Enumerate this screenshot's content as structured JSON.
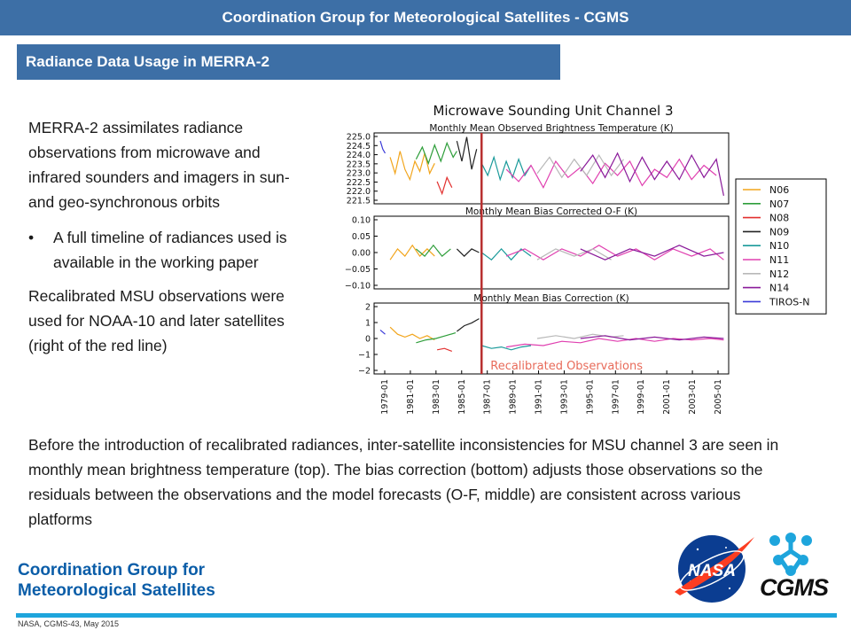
{
  "header": {
    "title": "Coordination Group for Meteorological Satellites - CGMS"
  },
  "section": {
    "title": "Radiance Data Usage in MERRA-2"
  },
  "left": {
    "para1": "MERRA-2 assimilates radiance observations from microwave and infrared sounders and imagers in sun- and geo-synchronous orbits",
    "bullet": "A full timeline of radiances used is available in the working paper",
    "bullet_symbol": "•",
    "para2": "Recalibrated MSU observations were used for NOAA-10 and later satellites (right of the red line)"
  },
  "bottom": {
    "text": "Before the introduction of recalibrated radiances, inter-satellite inconsistencies for MSU channel 3 are seen in monthly mean brightness temperature (top).  The bias correction (bottom) adjusts those observations so the residuals between the observations and the model forecasts (O-F, middle) are consistent across various platforms"
  },
  "footer": {
    "org_line1": "Coordination Group for",
    "org_line2": "Meteorological Satellites",
    "meta": "NASA, CGMS-43,  May 2015",
    "nasa_logo_text": "NASA",
    "cgms_logo_text": "CGMS",
    "accent": "#1ea5dc"
  },
  "chart_data": {
    "type": "line",
    "title": "Microwave Sounding Unit Channel 3",
    "annotation": "Recalibrated Observations",
    "x_ticks": [
      "1979-01",
      "1981-01",
      "1983-01",
      "1985-01",
      "1987-01",
      "1989-01",
      "1991-01",
      "1993-01",
      "1995-01",
      "1997-01",
      "1999-01",
      "2001-01",
      "2003-01",
      "2005-01"
    ],
    "xlim": [
      1978.3,
      2007.0
    ],
    "red_line_x": 1987.0,
    "legend": [
      {
        "name": "N06",
        "color": "#f2a51c"
      },
      {
        "name": "N07",
        "color": "#2e9e3a"
      },
      {
        "name": "N08",
        "color": "#e2302f"
      },
      {
        "name": "N09",
        "color": "#222222"
      },
      {
        "name": "N10",
        "color": "#1a9a9a"
      },
      {
        "name": "N11",
        "color": "#e040b0"
      },
      {
        "name": "N12",
        "color": "#b8b8b8"
      },
      {
        "name": "N14",
        "color": "#8a1a9a"
      },
      {
        "name": "TIROS-N",
        "color": "#3a3ad8"
      }
    ],
    "panels": [
      {
        "title": "Monthly Mean Observed Brightness Temperature (K)",
        "ylim": [
          221.5,
          225.0
        ],
        "yticks": [
          "225.0",
          "224.5",
          "224.0",
          "223.5",
          "223.0",
          "222.5",
          "222.0",
          "221.5"
        ],
        "series": [
          {
            "name": "TIROS-N",
            "x": [
              1978.8,
              1979.0,
              1979.2
            ],
            "y": [
              224.6,
              224.2,
              224.0
            ]
          },
          {
            "name": "N06",
            "x": [
              1979.6,
              1980.0,
              1980.4,
              1980.8,
              1981.2,
              1981.6,
              1982.0,
              1982.4,
              1982.8,
              1983.2
            ],
            "y": [
              223.8,
              223.0,
              224.1,
              223.2,
              222.7,
              223.6,
              223.1,
              224.0,
              223.0,
              223.5
            ]
          },
          {
            "name": "N07",
            "x": [
              1981.7,
              1982.2,
              1982.7,
              1983.2,
              1983.7,
              1984.2,
              1984.7,
              1985.0
            ],
            "y": [
              223.7,
              224.3,
              223.5,
              224.4,
              223.6,
              224.5,
              223.8,
              224.1
            ]
          },
          {
            "name": "N08",
            "x": [
              1983.4,
              1983.8,
              1984.2,
              1984.6
            ],
            "y": [
              222.6,
              222.0,
              222.8,
              222.3
            ]
          },
          {
            "name": "N09",
            "x": [
              1985.0,
              1985.4,
              1985.8,
              1986.2,
              1986.6
            ],
            "y": [
              224.6,
              223.6,
              224.8,
              223.2,
              224.2
            ]
          },
          {
            "name": "N10",
            "x": [
              1987.0,
              1987.5,
              1988.0,
              1988.5,
              1989.0,
              1989.5,
              1990.0,
              1990.5,
              1991.0
            ],
            "y": [
              223.5,
              222.9,
              223.8,
              222.7,
              223.6,
              222.8,
              223.7,
              222.9,
              223.4
            ]
          },
          {
            "name": "N11",
            "x": [
              1989.0,
              1990.0,
              1991.0,
              1992.0,
              1993.0,
              1994.0,
              1995.0,
              1996.0,
              1997.0,
              1998.0,
              1999.0,
              2000.0,
              2001.0,
              2002.0,
              2003.0,
              2004.0,
              2005.0,
              2006.0
            ],
            "y": [
              223.2,
              222.6,
              223.4,
              222.3,
              223.6,
              222.8,
              223.3,
              222.5,
              223.5,
              222.9,
              223.6,
              222.4,
              223.2,
              222.8,
              223.7,
              222.7,
              223.4,
              222.9
            ]
          },
          {
            "name": "N12",
            "x": [
              1991.5,
              1992.5,
              1993.5,
              1994.5,
              1995.5,
              1996.5,
              1997.5,
              1998.5
            ],
            "y": [
              223.0,
              223.8,
              222.8,
              223.7,
              222.9,
              223.9,
              222.9,
              223.7
            ]
          },
          {
            "name": "N14",
            "x": [
              1995.0,
              1996.0,
              1997.0,
              1998.0,
              1999.0,
              2000.0,
              2001.0,
              2002.0,
              2003.0,
              2004.0,
              2005.0,
              2006.0,
              2006.6
            ],
            "y": [
              223.1,
              223.9,
              222.8,
              224.0,
              222.6,
              223.8,
              222.7,
              223.6,
              222.7,
              223.9,
              222.8,
              223.7,
              221.9
            ]
          }
        ]
      },
      {
        "title": "Monthly Mean Bias Corrected O-F (K)",
        "ylim": [
          -0.1,
          0.1
        ],
        "yticks": [
          "0.10",
          "0.05",
          "0.00",
          "−0.05",
          "−0.10"
        ],
        "series": [
          {
            "name": "N06",
            "x": [
              1979.6,
              1980.2,
              1980.8,
              1981.4,
              1982.0,
              1982.6,
              1983.2
            ],
            "y": [
              -0.02,
              0.01,
              -0.01,
              0.02,
              -0.01,
              0.01,
              -0.01
            ]
          },
          {
            "name": "N07",
            "x": [
              1981.7,
              1982.4,
              1983.1,
              1983.8,
              1984.5
            ],
            "y": [
              0.01,
              -0.01,
              0.02,
              -0.01,
              0.01
            ]
          },
          {
            "name": "N09",
            "x": [
              1985.0,
              1985.6,
              1986.2,
              1986.8
            ],
            "y": [
              0.01,
              -0.01,
              0.01,
              0.0
            ]
          },
          {
            "name": "N10",
            "x": [
              1987.0,
              1987.8,
              1988.6,
              1989.4,
              1990.2,
              1991.0
            ],
            "y": [
              0.0,
              -0.02,
              0.01,
              -0.02,
              0.01,
              -0.01
            ]
          },
          {
            "name": "N11",
            "x": [
              1989.0,
              1990.5,
              1992.0,
              1993.5,
              1995.0,
              1996.5,
              1998.0,
              1999.5,
              2001.0,
              2002.5,
              2004.0,
              2005.5,
              2006.6
            ],
            "y": [
              -0.01,
              0.01,
              -0.02,
              0.01,
              -0.01,
              0.02,
              -0.01,
              0.01,
              -0.02,
              0.01,
              -0.01,
              0.01,
              -0.02
            ]
          },
          {
            "name": "N12",
            "x": [
              1991.5,
              1993.0,
              1994.5,
              1996.0,
              1997.5
            ],
            "y": [
              -0.02,
              0.01,
              -0.01,
              0.01,
              -0.02
            ]
          },
          {
            "name": "N14",
            "x": [
              1995.0,
              1997.0,
              1999.0,
              2001.0,
              2003.0,
              2005.0,
              2006.6
            ],
            "y": [
              0.01,
              -0.02,
              0.01,
              -0.01,
              0.02,
              -0.01,
              0.0
            ]
          }
        ]
      },
      {
        "title": "Monthly Mean Bias Correction (K)",
        "ylim": [
          -2.5,
          2.5
        ],
        "yticks": [
          "2",
          "1",
          "0",
          "−1",
          "−2"
        ],
        "series": [
          {
            "name": "TIROS-N",
            "x": [
              1978.8,
              1979.2
            ],
            "y": [
              0.6,
              0.3
            ]
          },
          {
            "name": "N06",
            "x": [
              1979.6,
              1980.2,
              1980.8,
              1981.4,
              1982.0,
              1982.6,
              1983.2
            ],
            "y": [
              0.8,
              0.3,
              0.1,
              0.3,
              0.0,
              0.2,
              -0.1
            ]
          },
          {
            "name": "N07",
            "x": [
              1981.7,
              1982.5,
              1983.3,
              1984.1,
              1984.9
            ],
            "y": [
              -0.3,
              -0.1,
              0.0,
              0.2,
              0.4
            ]
          },
          {
            "name": "N08",
            "x": [
              1983.4,
              1984.0,
              1984.6
            ],
            "y": [
              -0.8,
              -0.7,
              -0.9
            ]
          },
          {
            "name": "N09",
            "x": [
              1985.0,
              1985.6,
              1986.2,
              1986.8
            ],
            "y": [
              0.5,
              0.9,
              1.1,
              1.4
            ]
          },
          {
            "name": "N10",
            "x": [
              1987.0,
              1987.8,
              1988.6,
              1989.4,
              1990.2,
              1991.0
            ],
            "y": [
              -0.5,
              -0.7,
              -0.6,
              -0.8,
              -0.6,
              -0.5
            ]
          },
          {
            "name": "N11",
            "x": [
              1989.0,
              1990.5,
              1992.0,
              1993.5,
              1995.0,
              1996.5,
              1998.0,
              1999.5,
              2001.0,
              2002.5,
              2004.0,
              2005.5,
              2006.6
            ],
            "y": [
              -0.6,
              -0.4,
              -0.5,
              -0.2,
              -0.3,
              0.0,
              -0.2,
              0.0,
              -0.2,
              0.0,
              -0.1,
              0.0,
              -0.1
            ]
          },
          {
            "name": "N12",
            "x": [
              1991.5,
              1993.0,
              1994.5,
              1996.0,
              1997.5,
              1998.5
            ],
            "y": [
              0.0,
              0.2,
              0.0,
              0.3,
              0.1,
              0.2
            ]
          },
          {
            "name": "N14",
            "x": [
              1995.0,
              1997.0,
              1999.0,
              2001.0,
              2003.0,
              2005.0,
              2006.6
            ],
            "y": [
              0.0,
              0.2,
              -0.1,
              0.1,
              -0.1,
              0.1,
              0.0
            ]
          }
        ]
      }
    ]
  }
}
